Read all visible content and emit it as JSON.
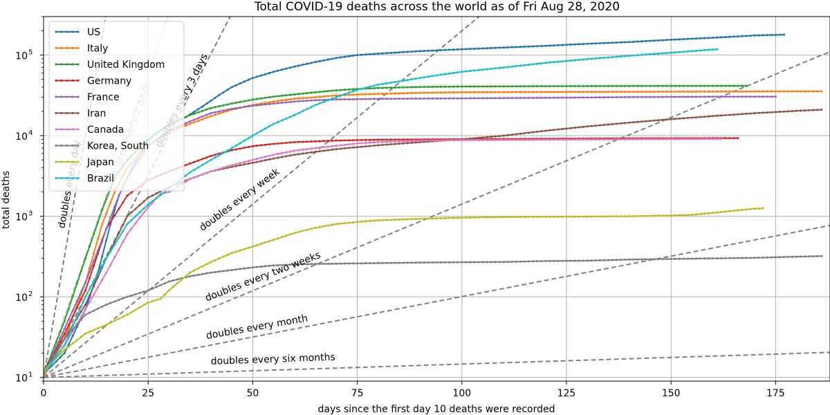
{
  "chart_data": {
    "type": "line",
    "title": "Total COVID-19 deaths across the world as of Fri Aug 28, 2020",
    "xlabel": "days since the first day 10 deaths were recorded",
    "ylabel": "total deaths",
    "xlim": [
      0,
      188
    ],
    "ylim": [
      9,
      300000
    ],
    "yscale": "log",
    "grid": true,
    "legend": "upper-left",
    "x_ticks": [
      {
        "value": 0,
        "label": "0"
      },
      {
        "value": 25,
        "label": "25"
      },
      {
        "value": 50,
        "label": "50"
      },
      {
        "value": 75,
        "label": "75"
      },
      {
        "value": 100,
        "label": "100"
      },
      {
        "value": 125,
        "label": "125"
      },
      {
        "value": 150,
        "label": "150"
      },
      {
        "value": 175,
        "label": "175"
      }
    ],
    "y_ticks": [
      {
        "value": 10,
        "base": "10",
        "exp": "1"
      },
      {
        "value": 100,
        "base": "10",
        "exp": "2"
      },
      {
        "value": 1000,
        "base": "10",
        "exp": "3"
      },
      {
        "value": 10000,
        "base": "10",
        "exp": "4"
      },
      {
        "value": 100000,
        "base": "10",
        "exp": "5"
      }
    ],
    "reference_lines": [
      {
        "doubling_days": 1,
        "label": "doubles every day",
        "label_x": 5,
        "label_y": 700,
        "angle": -80,
        "color": "#808080",
        "opacity": 1
      },
      {
        "doubling_days": 2,
        "label": "doubles every 2 days",
        "label_x": 17,
        "label_y": 2600,
        "angle": -70,
        "color": "#808080",
        "opacity": 0.45
      },
      {
        "doubling_days": 3,
        "label": "doubles every 3 days",
        "label_x": 28,
        "label_y": 7000,
        "angle": -63,
        "color": "#808080",
        "opacity": 1
      },
      {
        "doubling_days": 7,
        "label": "doubles every week",
        "label_x": 38,
        "label_y": 650,
        "angle": -37,
        "color": "#808080",
        "opacity": 1
      },
      {
        "doubling_days": 14,
        "label": "doubles every two weeks",
        "label_x": 39,
        "label_y": 88,
        "angle": -21,
        "color": "#808080",
        "opacity": 1
      },
      {
        "doubling_days": 30,
        "label": "doubles every month",
        "label_x": 39,
        "label_y": 30,
        "angle": -10,
        "color": "#808080",
        "opacity": 1
      },
      {
        "doubling_days": 182,
        "label": "doubles every six months",
        "label_x": 40,
        "label_y": 14.5,
        "angle": -2,
        "color": "#808080",
        "opacity": 1
      }
    ],
    "series": [
      {
        "name": "US",
        "color": "#1f77b4",
        "points": [
          [
            0,
            11
          ],
          [
            5,
            20
          ],
          [
            10,
            70
          ],
          [
            13,
            200
          ],
          [
            16,
            800
          ],
          [
            18,
            1800
          ],
          [
            20,
            3000
          ],
          [
            23,
            6000
          ],
          [
            26,
            10000
          ],
          [
            30,
            13500
          ],
          [
            34,
            17000
          ],
          [
            38,
            23000
          ],
          [
            42,
            32000
          ],
          [
            45,
            40000
          ],
          [
            50,
            52000
          ],
          [
            55,
            62000
          ],
          [
            60,
            72000
          ],
          [
            65,
            82000
          ],
          [
            70,
            92000
          ],
          [
            75,
            100000
          ],
          [
            80,
            104000
          ],
          [
            90,
            112000
          ],
          [
            100,
            118000
          ],
          [
            110,
            124000
          ],
          [
            120,
            130000
          ],
          [
            130,
            138000
          ],
          [
            140,
            145000
          ],
          [
            150,
            155000
          ],
          [
            160,
            164000
          ],
          [
            170,
            175000
          ],
          [
            177,
            179000
          ]
        ]
      },
      {
        "name": "Italy",
        "color": "#ff7f0e",
        "points": [
          [
            0,
            10
          ],
          [
            5,
            30
          ],
          [
            10,
            150
          ],
          [
            14,
            800
          ],
          [
            17,
            2000
          ],
          [
            20,
            4000
          ],
          [
            25,
            7500
          ],
          [
            30,
            11000
          ],
          [
            35,
            14000
          ],
          [
            40,
            17500
          ],
          [
            45,
            21000
          ],
          [
            50,
            24000
          ],
          [
            55,
            26500
          ],
          [
            60,
            28700
          ],
          [
            65,
            30000
          ],
          [
            70,
            31500
          ],
          [
            75,
            32400
          ],
          [
            80,
            33000
          ],
          [
            90,
            34000
          ],
          [
            100,
            34500
          ],
          [
            120,
            34800
          ],
          [
            140,
            35000
          ],
          [
            160,
            35200
          ],
          [
            180,
            35400
          ],
          [
            186,
            35460
          ]
        ]
      },
      {
        "name": "United Kingdom",
        "color": "#2ca02c",
        "points": [
          [
            0,
            11
          ],
          [
            5,
            50
          ],
          [
            10,
            300
          ],
          [
            14,
            1200
          ],
          [
            17,
            3000
          ],
          [
            20,
            5000
          ],
          [
            25,
            9000
          ],
          [
            30,
            13500
          ],
          [
            35,
            18000
          ],
          [
            40,
            22000
          ],
          [
            45,
            25000
          ],
          [
            50,
            28000
          ],
          [
            55,
            30500
          ],
          [
            60,
            32500
          ],
          [
            65,
            34500
          ],
          [
            70,
            36500
          ],
          [
            75,
            38000
          ],
          [
            80,
            39000
          ],
          [
            90,
            40200
          ],
          [
            100,
            40700
          ],
          [
            120,
            41100
          ],
          [
            140,
            41300
          ],
          [
            160,
            41450
          ],
          [
            168,
            41500
          ]
        ]
      },
      {
        "name": "Germany",
        "color": "#d62728",
        "points": [
          [
            0,
            11
          ],
          [
            5,
            35
          ],
          [
            10,
            120
          ],
          [
            15,
            700
          ],
          [
            20,
            1800
          ],
          [
            25,
            2800
          ],
          [
            30,
            3600
          ],
          [
            35,
            4500
          ],
          [
            40,
            5600
          ],
          [
            45,
            6600
          ],
          [
            50,
            7400
          ],
          [
            55,
            7900
          ],
          [
            60,
            8300
          ],
          [
            70,
            8700
          ],
          [
            80,
            8900
          ],
          [
            100,
            9050
          ],
          [
            120,
            9150
          ],
          [
            140,
            9250
          ],
          [
            160,
            9300
          ],
          [
            166,
            9320
          ]
        ]
      },
      {
        "name": "France",
        "color": "#9467bd",
        "points": [
          [
            0,
            11
          ],
          [
            5,
            40
          ],
          [
            10,
            150
          ],
          [
            15,
            700
          ],
          [
            18,
            1800
          ],
          [
            20,
            3000
          ],
          [
            25,
            7500
          ],
          [
            30,
            11500
          ],
          [
            35,
            15000
          ],
          [
            40,
            19000
          ],
          [
            45,
            21500
          ],
          [
            50,
            23500
          ],
          [
            55,
            25000
          ],
          [
            60,
            26500
          ],
          [
            65,
            27500
          ],
          [
            70,
            28100
          ],
          [
            80,
            28600
          ],
          [
            100,
            29000
          ],
          [
            120,
            29500
          ],
          [
            140,
            30100
          ],
          [
            160,
            30400
          ],
          [
            175,
            30500
          ]
        ]
      },
      {
        "name": "Iran",
        "color": "#8c564b",
        "points": [
          [
            0,
            12
          ],
          [
            5,
            30
          ],
          [
            10,
            80
          ],
          [
            15,
            300
          ],
          [
            20,
            1000
          ],
          [
            25,
            1700
          ],
          [
            30,
            2300
          ],
          [
            35,
            2900
          ],
          [
            40,
            3600
          ],
          [
            45,
            4100
          ],
          [
            50,
            4600
          ],
          [
            55,
            5200
          ],
          [
            60,
            5800
          ],
          [
            65,
            6300
          ],
          [
            70,
            6800
          ],
          [
            75,
            7200
          ],
          [
            80,
            7600
          ],
          [
            90,
            8300
          ],
          [
            100,
            9000
          ],
          [
            110,
            10000
          ],
          [
            120,
            11500
          ],
          [
            130,
            13000
          ],
          [
            140,
            14500
          ],
          [
            150,
            16000
          ],
          [
            160,
            17500
          ],
          [
            170,
            19000
          ],
          [
            180,
            20300
          ],
          [
            186,
            21000
          ]
        ]
      },
      {
        "name": "Canada",
        "color": "#e377c2",
        "points": [
          [
            0,
            11
          ],
          [
            5,
            25
          ],
          [
            10,
            70
          ],
          [
            15,
            200
          ],
          [
            20,
            600
          ],
          [
            25,
            1300
          ],
          [
            28,
            1900
          ],
          [
            30,
            2000
          ],
          [
            35,
            2900
          ],
          [
            40,
            3600
          ],
          [
            45,
            4300
          ],
          [
            50,
            5000
          ],
          [
            55,
            5800
          ],
          [
            60,
            6500
          ],
          [
            65,
            7000
          ],
          [
            70,
            7500
          ],
          [
            75,
            8000
          ],
          [
            80,
            8300
          ],
          [
            90,
            8700
          ],
          [
            100,
            8800
          ],
          [
            120,
            8900
          ],
          [
            140,
            9000
          ],
          [
            160,
            9100
          ],
          [
            162,
            9100
          ]
        ]
      },
      {
        "name": "Korea, South",
        "color": "#7f7f7f",
        "points": [
          [
            0,
            11
          ],
          [
            5,
            30
          ],
          [
            10,
            60
          ],
          [
            15,
            80
          ],
          [
            20,
            100
          ],
          [
            25,
            120
          ],
          [
            30,
            155
          ],
          [
            35,
            180
          ],
          [
            40,
            200
          ],
          [
            45,
            215
          ],
          [
            50,
            232
          ],
          [
            55,
            245
          ],
          [
            60,
            252
          ],
          [
            65,
            256
          ],
          [
            70,
            258
          ],
          [
            80,
            262
          ],
          [
            90,
            266
          ],
          [
            100,
            269
          ],
          [
            110,
            271
          ],
          [
            120,
            278
          ],
          [
            130,
            281
          ],
          [
            140,
            290
          ],
          [
            150,
            295
          ],
          [
            160,
            300
          ],
          [
            170,
            305
          ],
          [
            180,
            315
          ],
          [
            186,
            320
          ]
        ]
      },
      {
        "name": "Japan",
        "color": "#bcbd22",
        "points": [
          [
            0,
            12
          ],
          [
            5,
            22
          ],
          [
            10,
            35
          ],
          [
            15,
            45
          ],
          [
            20,
            60
          ],
          [
            25,
            85
          ],
          [
            28,
            95
          ],
          [
            30,
            120
          ],
          [
            35,
            200
          ],
          [
            40,
            270
          ],
          [
            45,
            350
          ],
          [
            50,
            420
          ],
          [
            55,
            510
          ],
          [
            60,
            620
          ],
          [
            65,
            720
          ],
          [
            70,
            800
          ],
          [
            75,
            850
          ],
          [
            80,
            890
          ],
          [
            90,
            930
          ],
          [
            100,
            960
          ],
          [
            110,
            980
          ],
          [
            120,
            985
          ],
          [
            130,
            990
          ],
          [
            140,
            1000
          ],
          [
            150,
            1020
          ],
          [
            155,
            1040
          ],
          [
            160,
            1100
          ],
          [
            165,
            1170
          ],
          [
            170,
            1240
          ],
          [
            172,
            1255
          ]
        ]
      },
      {
        "name": "Brazil",
        "color": "#17becf",
        "points": [
          [
            0,
            11
          ],
          [
            5,
            25
          ],
          [
            10,
            100
          ],
          [
            15,
            300
          ],
          [
            20,
            800
          ],
          [
            25,
            1400
          ],
          [
            30,
            2200
          ],
          [
            35,
            3500
          ],
          [
            40,
            5000
          ],
          [
            45,
            7000
          ],
          [
            50,
            10000
          ],
          [
            55,
            14000
          ],
          [
            60,
            18000
          ],
          [
            65,
            24000
          ],
          [
            70,
            30000
          ],
          [
            75,
            37000
          ],
          [
            80,
            43000
          ],
          [
            85,
            47000
          ],
          [
            90,
            52000
          ],
          [
            95,
            57000
          ],
          [
            100,
            62000
          ],
          [
            110,
            70000
          ],
          [
            120,
            80000
          ],
          [
            130,
            89000
          ],
          [
            140,
            98000
          ],
          [
            150,
            107000
          ],
          [
            160,
            117000
          ],
          [
            161,
            118000
          ]
        ]
      }
    ]
  }
}
